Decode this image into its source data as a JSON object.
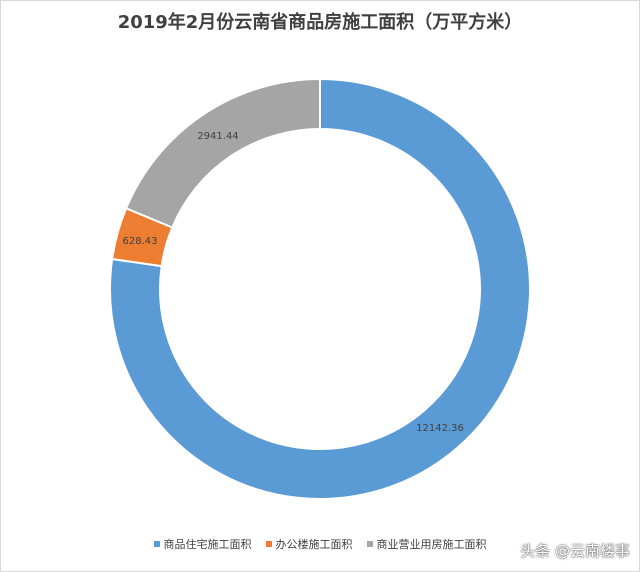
{
  "chart_data": {
    "type": "donut",
    "title": "2019年2月份云南省商品房施工面积（万平方米）",
    "categories": [
      "商品住宅施工面积",
      "办公楼施工面积",
      "商业营业用房施工面积"
    ],
    "values": [
      12142.36,
      628.43,
      2941.44
    ],
    "value_labels": [
      "12142.36",
      "628.43",
      "2941.44"
    ],
    "colors": [
      "#5b9bd5",
      "#ed7d31",
      "#a5a5a5"
    ],
    "legend_position": "bottom"
  },
  "watermark": "头条 @云南楼事"
}
